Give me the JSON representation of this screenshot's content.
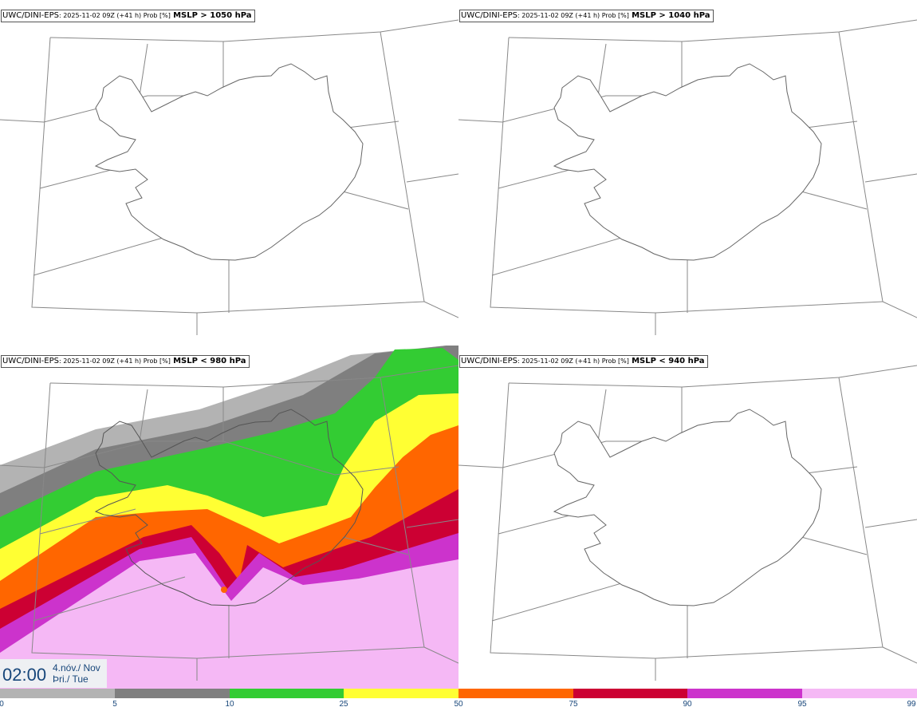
{
  "panels": [
    {
      "model": "UWC/DINI-EPS",
      "meta": ": 2025-11-02 09Z (+41 h) Prob [%]",
      "field": "MSLP > 1050 hPa"
    },
    {
      "model": "UWC/DINI-EPS",
      "meta": ": 2025-11-02 09Z (+41 h) Prob [%]",
      "field": "MSLP > 1040 hPa"
    },
    {
      "model": "UWC/DINI-EPS",
      "meta": ": 2025-11-02 09Z (+41 h) Prob [%]",
      "field": "MSLP < 980 hPa"
    },
    {
      "model": "UWC/DINI-EPS",
      "meta": ": 2025-11-02 09Z (+41 h) Prob [%]",
      "field": "MSLP < 940 hPa"
    }
  ],
  "time": {
    "clock": "02:00",
    "date_line1": "4.nóv./ Nov",
    "date_line2": "Þri./ Tue"
  },
  "colorbar": {
    "ticks": [
      "0",
      "5",
      "10",
      "25",
      "50",
      "75",
      "90",
      "95",
      "99"
    ],
    "colors": [
      "#ffffff",
      "#b3b3b3",
      "#7f7f7f",
      "#33cc33",
      "#ffff33",
      "#ff6600",
      "#cc0033",
      "#cc33cc",
      "#f5b8f5"
    ]
  }
}
